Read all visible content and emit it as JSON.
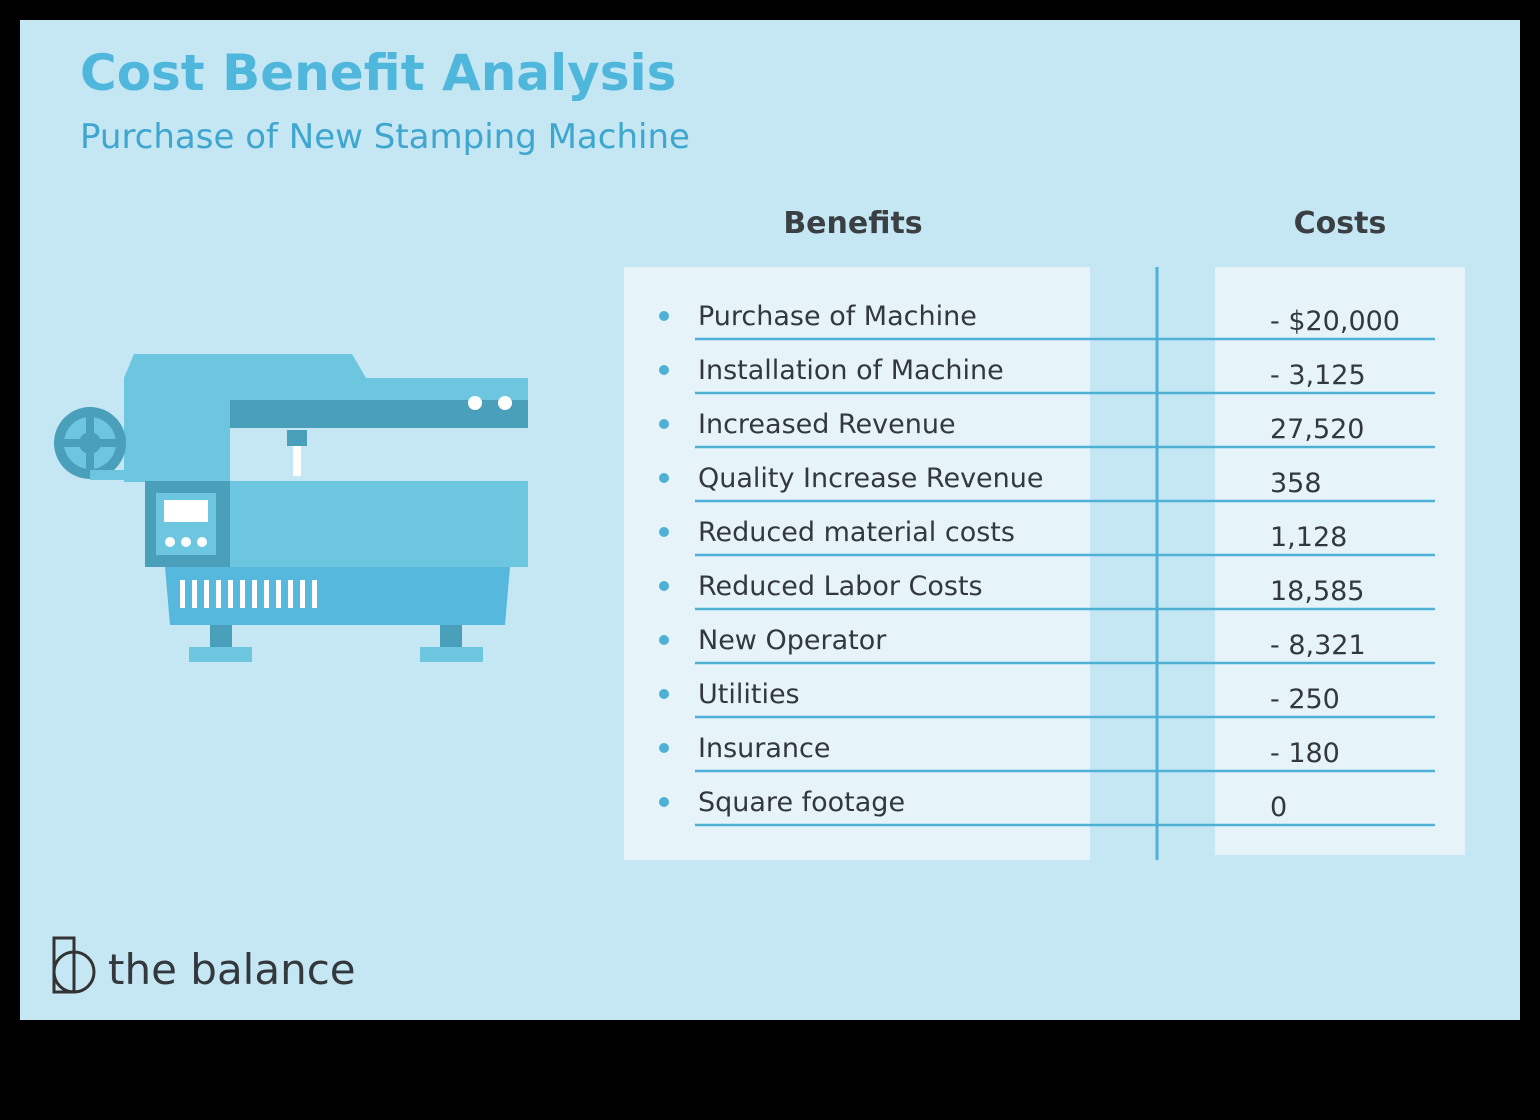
{
  "header": {
    "title": "Cost Benefit Analysis",
    "subtitle": "Purchase of New Stamping Machine"
  },
  "table": {
    "columns": [
      "Benefits",
      "Costs"
    ],
    "rows": [
      [
        "Purchase of Machine",
        "- $20,000"
      ],
      [
        "Installation of Machine",
        "- 3,125"
      ],
      [
        "Increased Revenue",
        "27,520"
      ],
      [
        "Quality Increase Revenue",
        "358"
      ],
      [
        "Reduced material costs",
        "1,128"
      ],
      [
        "Reduced Labor Costs",
        "18,585"
      ],
      [
        "New Operator",
        "- 8,321"
      ],
      [
        "Utilities",
        "- 250"
      ],
      [
        "Insurance",
        "- 180"
      ],
      [
        "Square footage",
        "0"
      ]
    ]
  },
  "footer": {
    "brand": "the balance"
  }
}
